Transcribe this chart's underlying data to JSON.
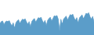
{
  "values": [
    68,
    74,
    76,
    64,
    72,
    76,
    74,
    77,
    67,
    60,
    70,
    52,
    70,
    76,
    80,
    68,
    76,
    82,
    80,
    83,
    73,
    65,
    74,
    57,
    74,
    80,
    84,
    72,
    80,
    87,
    85,
    88,
    77,
    69,
    78,
    61,
    78,
    84,
    88,
    76,
    84,
    93,
    91,
    94,
    82,
    44,
    82,
    65,
    82,
    87,
    92,
    79,
    88,
    97,
    95,
    98,
    86,
    78,
    87,
    69,
    86,
    91,
    96,
    83,
    92,
    101,
    99,
    103,
    90,
    82,
    91,
    73
  ],
  "line_color": "#5b9dc9",
  "fill_color": "#5b9dc9",
  "background_color": "#ffffff",
  "ylim_min": 30,
  "ylim_max": 145
}
